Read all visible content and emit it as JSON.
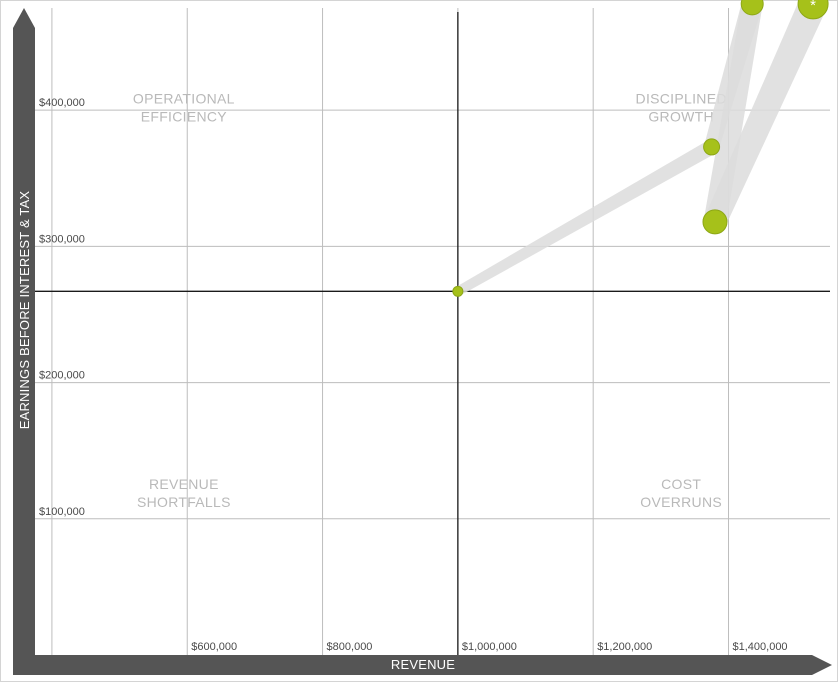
{
  "colors": {
    "axis_arrow": "#555555",
    "grid": "#bdbdbd",
    "crosshair": "#1a1a1a",
    "point": "#a6c11a",
    "point_edge": "#8da716",
    "trail": "#dcdcdc",
    "quadrant_text": "#b9b9b9",
    "tick_text": "#4a4a4a"
  },
  "chart_data": {
    "type": "scatter",
    "title": "",
    "xlabel": "REVENUE",
    "ylabel": "EARNINGS BEFORE INTEREST & TAX",
    "xlim": [
      375000,
      1550000
    ],
    "ylim": [
      0,
      475000
    ],
    "x_ticks": [
      {
        "value": 600000,
        "label": "$600,000"
      },
      {
        "value": 800000,
        "label": "$800,000"
      },
      {
        "value": 1000000,
        "label": "$1,000,000"
      },
      {
        "value": 1200000,
        "label": "$1,200,000"
      },
      {
        "value": 1400000,
        "label": "$1,400,000"
      }
    ],
    "y_ticks": [
      {
        "value": 100000,
        "label": "$100,000"
      },
      {
        "value": 200000,
        "label": "$200,000"
      },
      {
        "value": 300000,
        "label": "$300,000"
      },
      {
        "value": 400000,
        "label": "$400,000"
      }
    ],
    "extra_x_gridlines": [
      400000
    ],
    "crosshair": {
      "x": 1000000,
      "y": 267000
    },
    "quadrants": [
      {
        "lines": [
          "OPERATIONAL",
          "EFFICIENCY"
        ],
        "x": 595000,
        "y": 405000
      },
      {
        "lines": [
          "DISCIPLINED",
          "GROWTH"
        ],
        "x": 1330000,
        "y": 405000
      },
      {
        "lines": [
          "REVENUE",
          "SHORTFALLS"
        ],
        "x": 595000,
        "y": 122000
      },
      {
        "lines": [
          "COST",
          "OVERRUNS"
        ],
        "x": 1330000,
        "y": 122000
      }
    ],
    "points": [
      {
        "x": 1000000,
        "y": 267000,
        "r": 5
      },
      {
        "x": 1375000,
        "y": 373000,
        "r": 8
      },
      {
        "x": 1380000,
        "y": 318000,
        "r": 12
      },
      {
        "x": 1435000,
        "y": 478000,
        "r": 11
      },
      {
        "x": 1525000,
        "y": 478000,
        "r": 15,
        "marker": "*"
      }
    ],
    "trails": [
      {
        "from": 0,
        "to": 1
      },
      {
        "from": 1,
        "to": 3
      },
      {
        "from": 3,
        "to": 2
      },
      {
        "from": 2,
        "to": 4
      }
    ],
    "grid": true,
    "legend": "none"
  }
}
